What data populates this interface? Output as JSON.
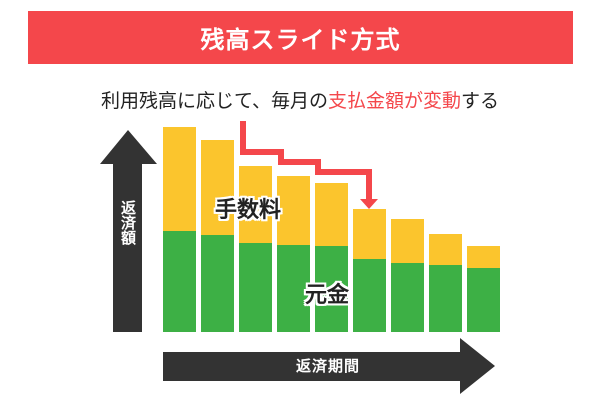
{
  "title": "残高スライド方式",
  "subtitle": {
    "before": "利用残高に応じて、毎月の",
    "highlight": "支払金額が変動",
    "after": "する"
  },
  "y_axis_label": "返済額",
  "x_axis_label": "返済期間",
  "segment_labels": {
    "fee": "手数料",
    "principal": "元金"
  },
  "colors": {
    "banner": "#f4474b",
    "fee": "#fbc52d",
    "principal": "#3db045",
    "arrow": "#333333",
    "trend_arrow": "#f4474b"
  }
}
